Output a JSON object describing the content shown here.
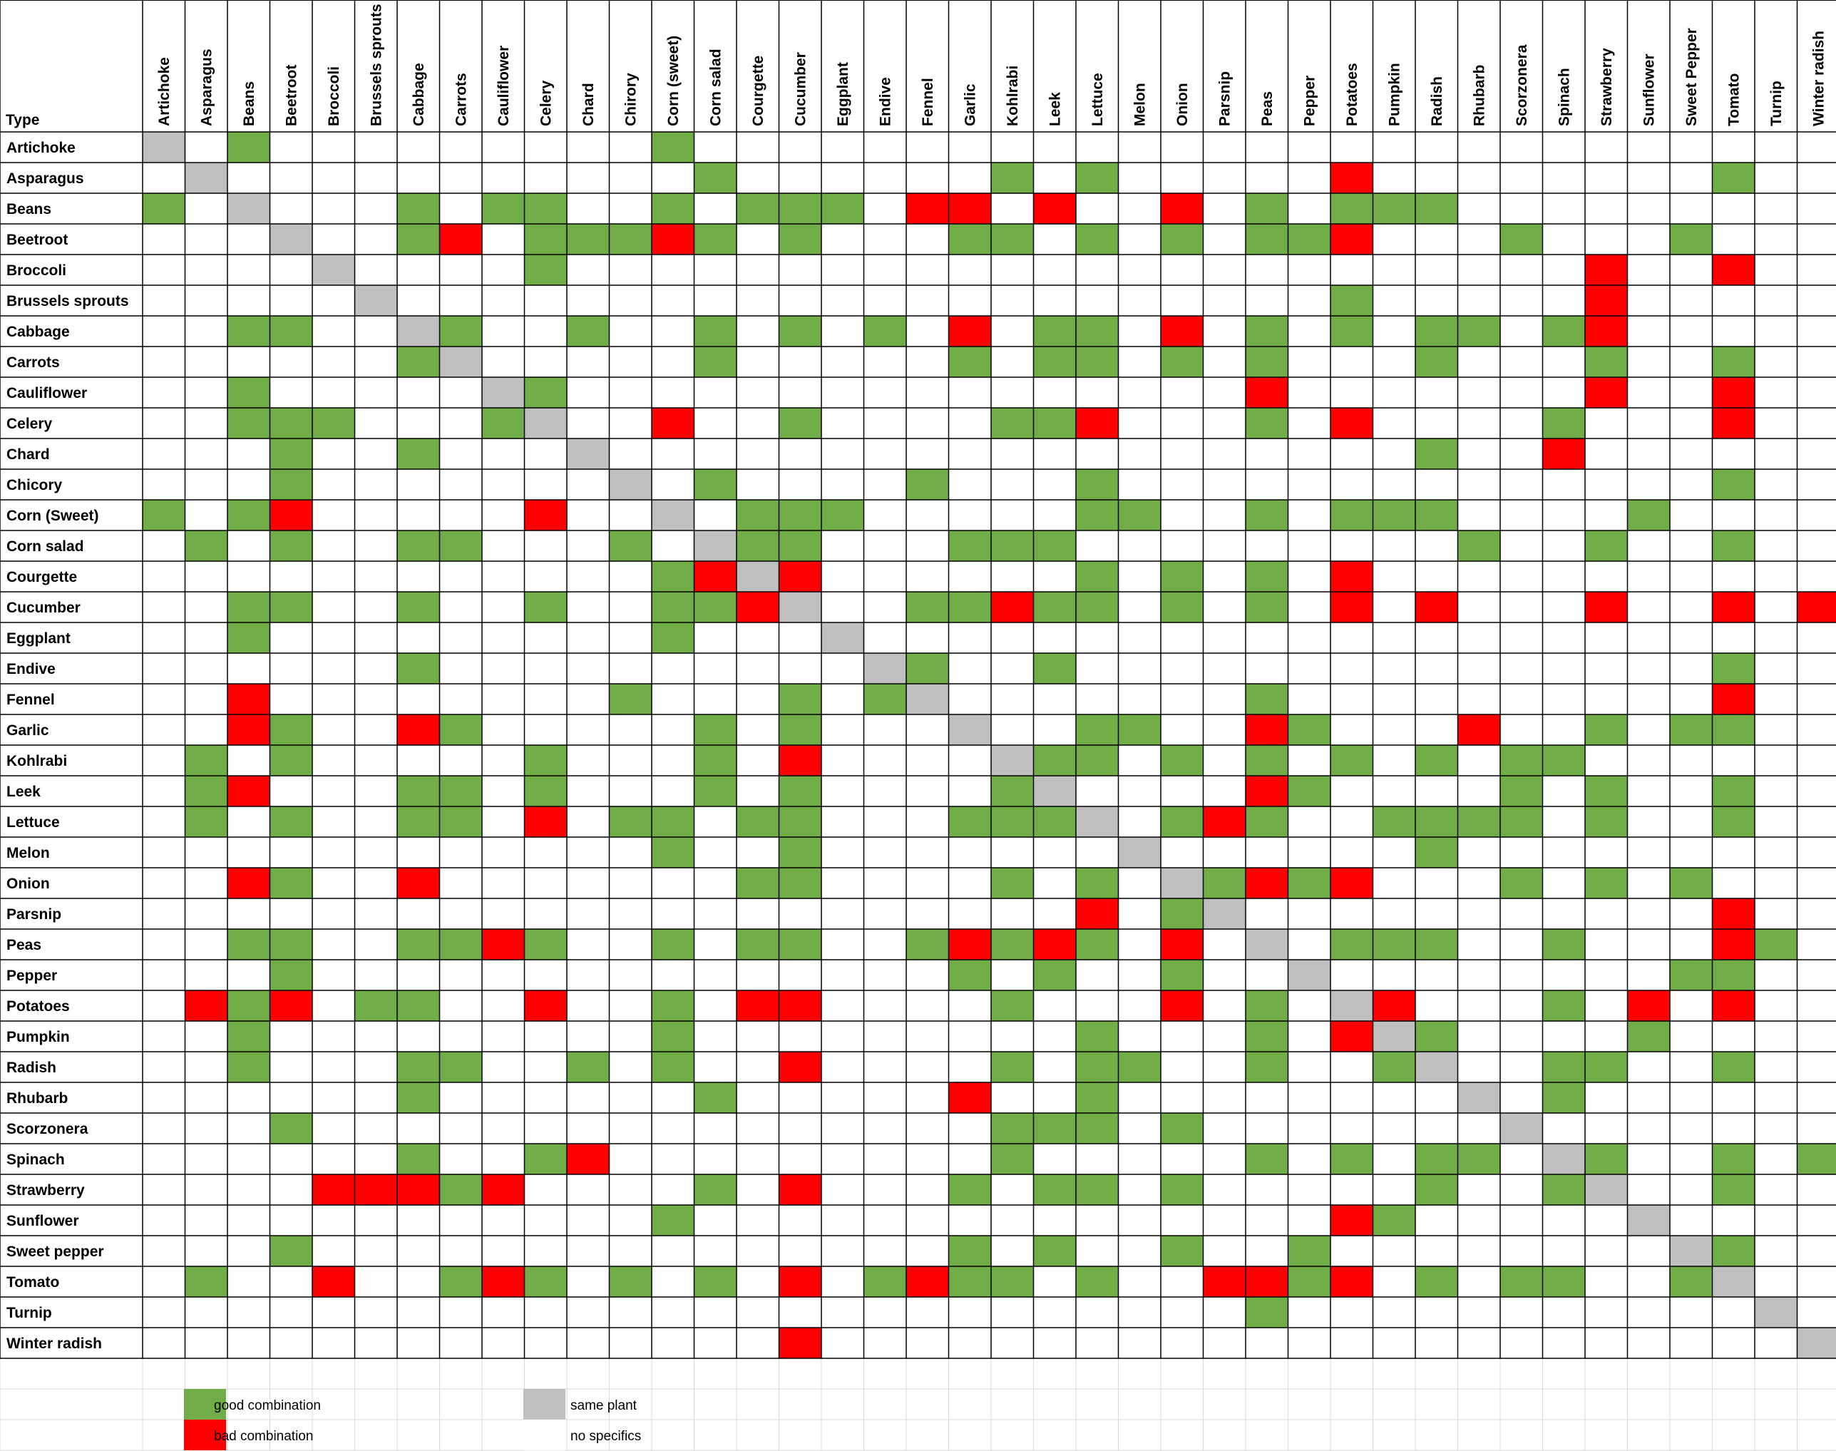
{
  "chart_data": {
    "type": "heatmap",
    "corner_label": "Type",
    "columns": [
      "Artichoke",
      "Asparagus",
      "Beans",
      "Beetroot",
      "Broccoli",
      "Brussels sprouts",
      "Cabbage",
      "Carrots",
      "Cauliflower",
      "Celery",
      "Chard",
      "Chirory",
      "Corn (sweet)",
      "Corn salad",
      "Courgette",
      "Cucumber",
      "Eggplant",
      "Endive",
      "Fennel",
      "Garlic",
      "Kohlrabi",
      "Leek",
      "Lettuce",
      "Melon",
      "Onion",
      "Parsnip",
      "Peas",
      "Pepper",
      "Potatoes",
      "Pumpkin",
      "Radish",
      "Rhubarb",
      "Scorzonera",
      "Spinach",
      "Strawberry",
      "Sunflower",
      "Sweet Pepper",
      "Tomato",
      "Turnip",
      "Winter radish"
    ],
    "rows": [
      {
        "label": "Artichoke",
        "good": [
          2,
          12
        ],
        "bad": []
      },
      {
        "label": "Asparagus",
        "good": [
          13,
          20,
          22,
          37
        ],
        "bad": [
          28
        ]
      },
      {
        "label": "Beans",
        "good": [
          0,
          6,
          8,
          9,
          12,
          14,
          15,
          16,
          26,
          28,
          29,
          30
        ],
        "bad": [
          18,
          19,
          21,
          24
        ]
      },
      {
        "label": "Beetroot",
        "good": [
          6,
          9,
          10,
          11,
          13,
          15,
          19,
          20,
          22,
          24,
          26,
          27,
          32,
          36
        ],
        "bad": [
          7,
          12,
          28
        ]
      },
      {
        "label": "Broccoli",
        "good": [
          9
        ],
        "bad": [
          34,
          37
        ]
      },
      {
        "label": "Brussels sprouts",
        "good": [
          28
        ],
        "bad": [
          34
        ]
      },
      {
        "label": "Cabbage",
        "good": [
          2,
          3,
          7,
          10,
          13,
          15,
          17,
          21,
          22,
          26,
          28,
          30,
          31,
          33
        ],
        "bad": [
          19,
          24,
          34
        ]
      },
      {
        "label": "Carrots",
        "good": [
          6,
          13,
          19,
          21,
          22,
          24,
          26,
          30,
          34,
          37
        ],
        "bad": []
      },
      {
        "label": "Cauliflower",
        "good": [
          2,
          9
        ],
        "bad": [
          26,
          34,
          37
        ]
      },
      {
        "label": "Celery",
        "good": [
          2,
          3,
          4,
          8,
          15,
          20,
          21,
          26,
          33
        ],
        "bad": [
          12,
          22,
          28,
          37
        ]
      },
      {
        "label": "Chard",
        "good": [
          3,
          6,
          30
        ],
        "bad": [
          33
        ]
      },
      {
        "label": "Chicory",
        "good": [
          3,
          13,
          18,
          22,
          37
        ],
        "bad": []
      },
      {
        "label": "Corn (Sweet)",
        "good": [
          0,
          2,
          14,
          15,
          16,
          22,
          23,
          26,
          28,
          29,
          30,
          35
        ],
        "bad": [
          3,
          9
        ]
      },
      {
        "label": "Corn salad",
        "good": [
          1,
          3,
          6,
          7,
          11,
          14,
          15,
          19,
          20,
          21,
          31,
          34,
          37
        ],
        "bad": []
      },
      {
        "label": "Courgette",
        "good": [
          12,
          22,
          24,
          26
        ],
        "bad": [
          13,
          15,
          28
        ]
      },
      {
        "label": "Cucumber",
        "good": [
          2,
          3,
          6,
          9,
          12,
          13,
          18,
          19,
          21,
          22,
          24,
          26
        ],
        "bad": [
          14,
          20,
          28,
          30,
          34,
          37,
          39
        ]
      },
      {
        "label": "Eggplant",
        "good": [
          2,
          12
        ],
        "bad": []
      },
      {
        "label": "Endive",
        "good": [
          6,
          18,
          21,
          37
        ],
        "bad": []
      },
      {
        "label": "Fennel",
        "good": [
          11,
          15,
          17,
          26
        ],
        "bad": [
          2,
          37
        ]
      },
      {
        "label": "Garlic",
        "good": [
          3,
          7,
          13,
          15,
          22,
          23,
          27,
          34,
          36,
          37
        ],
        "bad": [
          2,
          6,
          26,
          31
        ]
      },
      {
        "label": "Kohlrabi",
        "good": [
          1,
          3,
          9,
          13,
          21,
          22,
          24,
          26,
          28,
          30,
          32,
          33
        ],
        "bad": [
          15
        ]
      },
      {
        "label": "Leek",
        "good": [
          1,
          6,
          7,
          9,
          13,
          15,
          20,
          27,
          32,
          34,
          37
        ],
        "bad": [
          2,
          26
        ]
      },
      {
        "label": "Lettuce",
        "good": [
          1,
          3,
          6,
          7,
          11,
          12,
          14,
          15,
          19,
          20,
          21,
          24,
          26,
          29,
          30,
          31,
          32,
          34,
          37
        ],
        "bad": [
          9,
          25
        ]
      },
      {
        "label": "Melon",
        "good": [
          12,
          15,
          30
        ],
        "bad": []
      },
      {
        "label": "Onion",
        "good": [
          3,
          14,
          15,
          20,
          22,
          25,
          27,
          32,
          34,
          36
        ],
        "bad": [
          2,
          6,
          26,
          28
        ]
      },
      {
        "label": "Parsnip",
        "good": [
          24
        ],
        "bad": [
          22,
          37
        ]
      },
      {
        "label": "Peas",
        "good": [
          2,
          3,
          6,
          7,
          9,
          12,
          14,
          15,
          18,
          20,
          22,
          28,
          29,
          30,
          33,
          38
        ],
        "bad": [
          8,
          19,
          21,
          24,
          37
        ]
      },
      {
        "label": "Pepper",
        "good": [
          3,
          19,
          21,
          24,
          36,
          37
        ],
        "bad": []
      },
      {
        "label": "Potatoes",
        "good": [
          2,
          5,
          6,
          12,
          20,
          26,
          33
        ],
        "bad": [
          1,
          3,
          9,
          14,
          15,
          24,
          29,
          35,
          37
        ]
      },
      {
        "label": "Pumpkin",
        "good": [
          2,
          12,
          22,
          26,
          30,
          35
        ],
        "bad": [
          28
        ]
      },
      {
        "label": "Radish",
        "good": [
          2,
          6,
          7,
          10,
          12,
          20,
          22,
          23,
          26,
          29,
          33,
          34,
          37
        ],
        "bad": [
          15
        ]
      },
      {
        "label": "Rhubarb",
        "good": [
          6,
          13,
          22,
          33
        ],
        "bad": [
          19
        ]
      },
      {
        "label": "Scorzonera",
        "good": [
          3,
          20,
          21,
          22,
          24
        ],
        "bad": []
      },
      {
        "label": "Spinach",
        "good": [
          6,
          9,
          20,
          26,
          28,
          30,
          31,
          34,
          37,
          39
        ],
        "bad": [
          10
        ]
      },
      {
        "label": "Strawberry",
        "good": [
          7,
          13,
          19,
          21,
          22,
          24,
          30,
          33,
          37
        ],
        "bad": [
          4,
          5,
          6,
          8,
          15
        ]
      },
      {
        "label": "Sunflower",
        "good": [
          12,
          29
        ],
        "bad": [
          28
        ]
      },
      {
        "label": "Sweet pepper",
        "good": [
          3,
          19,
          21,
          24,
          27,
          37
        ],
        "bad": []
      },
      {
        "label": "Tomato",
        "good": [
          1,
          7,
          9,
          11,
          13,
          17,
          19,
          20,
          22,
          27,
          30,
          32,
          33,
          36
        ],
        "bad": [
          4,
          8,
          15,
          18,
          25,
          26,
          28
        ]
      },
      {
        "label": "Turnip",
        "good": [
          26
        ],
        "bad": []
      },
      {
        "label": "Winter radish",
        "good": [],
        "bad": [
          15
        ]
      }
    ],
    "legend": [
      {
        "key": "good",
        "label": "good combination",
        "color": "#70ad47"
      },
      {
        "key": "bad",
        "label": "bad combination",
        "color": "#ff0000"
      },
      {
        "key": "same",
        "label": "same plant",
        "color": "#bfbfbf"
      },
      {
        "key": "none",
        "label": "no specifics",
        "color": "#ffffff"
      }
    ],
    "colors": {
      "good": "#70ad47",
      "bad": "#ff0000",
      "same": "#bfbfbf",
      "none": "#ffffff",
      "grid": "#000000",
      "faint_grid": "#d9d9d9"
    }
  }
}
